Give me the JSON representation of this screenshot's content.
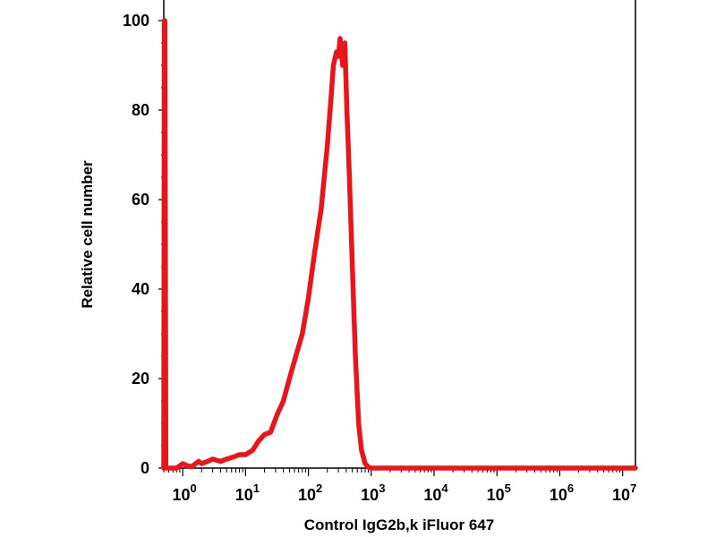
{
  "chart_data": {
    "type": "line",
    "title": "",
    "xlabel": "Control IgG2b,k iFluor 647",
    "ylabel": "Relative cell number",
    "x_scale": "log",
    "xlim": [
      0.5,
      16000000
    ],
    "ylim": [
      0,
      100
    ],
    "grid": false,
    "x_ticks": [
      {
        "value": 1,
        "base": "10",
        "exp": "0"
      },
      {
        "value": 10,
        "base": "10",
        "exp": "1"
      },
      {
        "value": 100,
        "base": "10",
        "exp": "2"
      },
      {
        "value": 1000,
        "base": "10",
        "exp": "3"
      },
      {
        "value": 10000,
        "base": "10",
        "exp": "4"
      },
      {
        "value": 100000,
        "base": "10",
        "exp": "5"
      },
      {
        "value": 1000000,
        "base": "10",
        "exp": "6"
      },
      {
        "value": 10000000,
        "base": "10",
        "exp": "7"
      }
    ],
    "y_ticks": [
      {
        "value": 0,
        "label": "0"
      },
      {
        "value": 20,
        "label": "20"
      },
      {
        "value": 40,
        "label": "40"
      },
      {
        "value": 60,
        "label": "60"
      },
      {
        "value": 80,
        "label": "80"
      },
      {
        "value": 100,
        "label": "100"
      }
    ],
    "series": [
      {
        "color": "#e8151b",
        "x": [
          0.5,
          0.51,
          0.52,
          0.53,
          0.54,
          0.6,
          0.7,
          0.8,
          0.9,
          1.0,
          1.2,
          1.4,
          1.6,
          1.8,
          2.0,
          2.5,
          3.0,
          4.0,
          5.0,
          6.5,
          8.0,
          10,
          13,
          16,
          20,
          25,
          32,
          40,
          50,
          63,
          80,
          100,
          125,
          160,
          200,
          230,
          250,
          280,
          300,
          320,
          350,
          380,
          410,
          450,
          500,
          560,
          630,
          700,
          800,
          900,
          1000,
          1200,
          1500,
          2000,
          5000,
          20000,
          100000,
          1000000,
          16000000
        ],
        "y": [
          0,
          100,
          100,
          50,
          0,
          0,
          0,
          0,
          0.5,
          1,
          0.5,
          0.3,
          1,
          1.5,
          1,
          1.5,
          2,
          1.5,
          2,
          2.5,
          3,
          3,
          4,
          6,
          7.5,
          8,
          12,
          15,
          20,
          25,
          30,
          38,
          48,
          58,
          72,
          83,
          90,
          93,
          92,
          96,
          90,
          95,
          80,
          65,
          45,
          25,
          10,
          4,
          1,
          0.2,
          0,
          0,
          0,
          0,
          0,
          0,
          0,
          0,
          0
        ]
      }
    ]
  }
}
